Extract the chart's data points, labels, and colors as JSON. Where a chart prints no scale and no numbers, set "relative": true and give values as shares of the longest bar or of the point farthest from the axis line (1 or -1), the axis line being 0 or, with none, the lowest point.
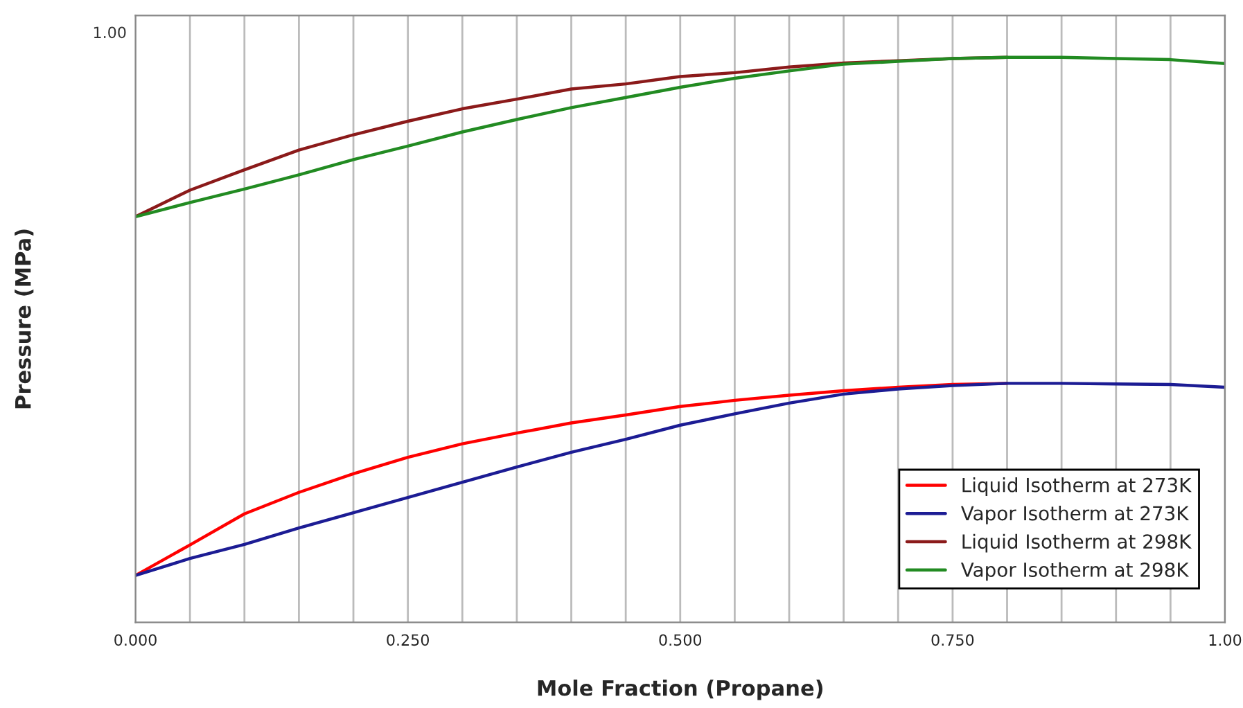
{
  "chart_data": {
    "type": "line",
    "xlabel": "Mole Fraction (Propane)",
    "ylabel": "Pressure (MPa)",
    "relative": true,
    "x": [
      0,
      0.05,
      0.1,
      0.15,
      0.2,
      0.25,
      0.3,
      0.35,
      0.4,
      0.45,
      0.5,
      0.55,
      0.6,
      0.65,
      0.7,
      0.75,
      0.8,
      0.85,
      0.9,
      0.95,
      1.0
    ],
    "xlim": [
      0,
      1
    ],
    "xticks": [
      {
        "value": 0,
        "label": "0.000"
      },
      {
        "value": 0.05,
        "label": null
      },
      {
        "value": 0.1,
        "label": null
      },
      {
        "value": 0.15,
        "label": null
      },
      {
        "value": 0.2,
        "label": null
      },
      {
        "value": 0.25,
        "label": "0.250"
      },
      {
        "value": 0.3,
        "label": null
      },
      {
        "value": 0.35,
        "label": null
      },
      {
        "value": 0.4,
        "label": null
      },
      {
        "value": 0.45,
        "label": null
      },
      {
        "value": 0.5,
        "label": "0.500"
      },
      {
        "value": 0.55,
        "label": null
      },
      {
        "value": 0.6,
        "label": null
      },
      {
        "value": 0.65,
        "label": null
      },
      {
        "value": 0.7,
        "label": null
      },
      {
        "value": 0.75,
        "label": "0.750"
      },
      {
        "value": 0.8,
        "label": null
      },
      {
        "value": 0.85,
        "label": null
      },
      {
        "value": 0.9,
        "label": null
      },
      {
        "value": 0.95,
        "label": null
      },
      {
        "value": 1.0,
        "label": "1.00"
      }
    ],
    "series": [
      {
        "name": "Liquid Isotherm at 273K",
        "color": "#ff0000",
        "values": [
          0.083,
          0.137,
          0.192,
          0.23,
          0.263,
          0.292,
          0.316,
          0.335,
          0.353,
          0.367,
          0.382,
          0.393,
          0.402,
          0.41,
          0.416,
          0.421,
          0.423,
          null,
          null,
          null,
          null
        ]
      },
      {
        "name": "Vapor Isotherm at 273K",
        "color": "#1c1c94",
        "values": [
          0.083,
          0.113,
          0.138,
          0.167,
          0.194,
          0.221,
          0.248,
          0.275,
          0.301,
          0.324,
          0.349,
          0.369,
          0.388,
          0.404,
          0.413,
          0.419,
          0.423,
          0.423,
          0.422,
          0.421,
          0.416
        ]
      },
      {
        "name": "Liquid Isotherm at 298K",
        "color": "#8b1a1a",
        "values": [
          0.718,
          0.765,
          0.801,
          0.836,
          0.863,
          0.887,
          0.909,
          0.926,
          0.944,
          0.953,
          0.966,
          0.973,
          0.983,
          0.99,
          0.994,
          0.998,
          1.0,
          null,
          null,
          null,
          null
        ]
      },
      {
        "name": "Vapor Isotherm at 298K",
        "color": "#228b22",
        "values": [
          0.718,
          0.743,
          0.767,
          0.792,
          0.819,
          0.843,
          0.868,
          0.89,
          0.911,
          0.929,
          0.947,
          0.963,
          0.976,
          0.988,
          0.993,
          0.998,
          1.0,
          1.0,
          0.998,
          0.996,
          0.989
        ]
      }
    ],
    "annotations": [
      "1.00"
    ],
    "grid": "x",
    "legend": "bottom right",
    "line_style": "solid",
    "marker": "none"
  }
}
